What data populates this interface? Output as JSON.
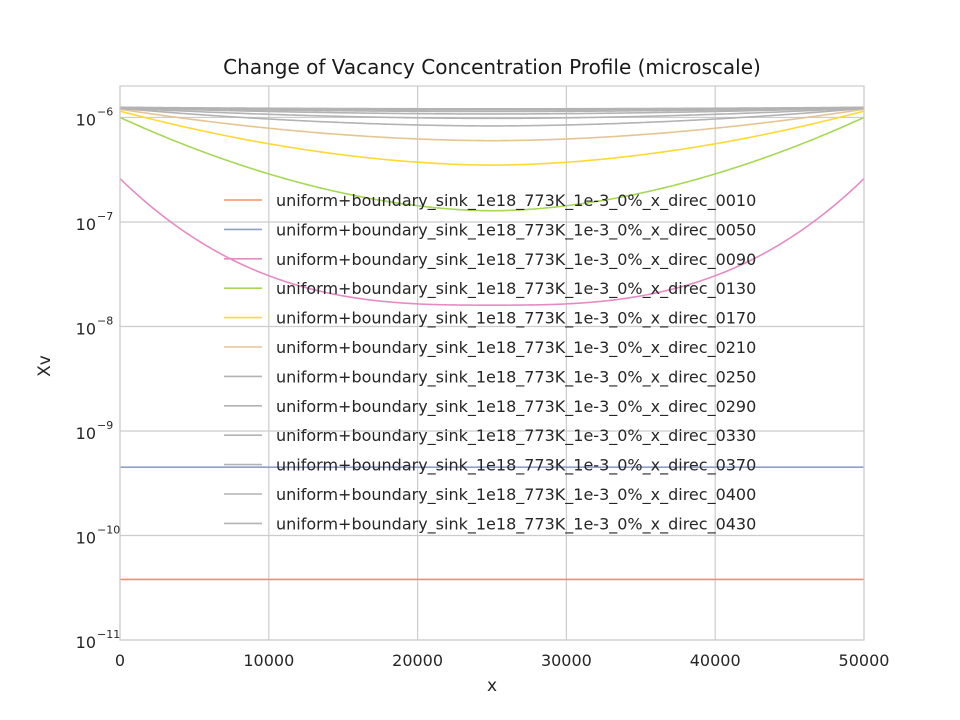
{
  "chart_data": {
    "type": "line",
    "title": "Change of Vacancy Concentration Profile (microscale)",
    "xlabel": "x",
    "ylabel": "Xv",
    "xlim": [
      0,
      50000
    ],
    "ylim": [
      1e-11,
      2e-06
    ],
    "yscale": "log",
    "grid": true,
    "legend_position": "center-right",
    "x_ticks": [
      {
        "value": 0,
        "label": "0"
      },
      {
        "value": 10000,
        "label": "10000"
      },
      {
        "value": 20000,
        "label": "20000"
      },
      {
        "value": 30000,
        "label": "30000"
      },
      {
        "value": 40000,
        "label": "40000"
      },
      {
        "value": 50000,
        "label": "50000"
      }
    ],
    "y_ticks": [
      {
        "value": 1e-11,
        "base": "10",
        "exp": "−11"
      },
      {
        "value": 1e-10,
        "base": "10",
        "exp": "−10"
      },
      {
        "value": 1e-09,
        "base": "10",
        "exp": "−9"
      },
      {
        "value": 1e-08,
        "base": "10",
        "exp": "−8"
      },
      {
        "value": 1e-07,
        "base": "10",
        "exp": "−7"
      },
      {
        "value": 1e-06,
        "base": "10",
        "exp": "−6"
      }
    ],
    "series": [
      {
        "name": "uniform+boundary_sink_1e18_773K_1e-3_0%_x_direc_0010",
        "color": "#fc8d62",
        "edge": 3.8e-11,
        "mid": 3.8e-11
      },
      {
        "name": "uniform+boundary_sink_1e18_773K_1e-3_0%_x_direc_0050",
        "color": "#8da0cb",
        "edge": 4.5e-10,
        "mid": 4.5e-10
      },
      {
        "name": "uniform+boundary_sink_1e18_773K_1e-3_0%_x_direc_0090",
        "color": "#e78ac3",
        "edge": 2.6e-07,
        "mid": 1.6e-08
      },
      {
        "name": "uniform+boundary_sink_1e18_773K_1e-3_0%_x_direc_0130",
        "color": "#a6d854",
        "edge": 1e-06,
        "mid": 1.28e-07
      },
      {
        "name": "uniform+boundary_sink_1e18_773K_1e-3_0%_x_direc_0170",
        "color": "#ffd92f",
        "edge": 1.15e-06,
        "mid": 3.5e-07
      },
      {
        "name": "uniform+boundary_sink_1e18_773K_1e-3_0%_x_direc_0210",
        "color": "#e5c494",
        "edge": 1.2e-06,
        "mid": 6e-07
      },
      {
        "name": "uniform+boundary_sink_1e18_773K_1e-3_0%_x_direc_0250",
        "color": "#b3b3b3",
        "edge": 1.22e-06,
        "mid": 8.3e-07
      },
      {
        "name": "uniform+boundary_sink_1e18_773K_1e-3_0%_x_direc_0290",
        "color": "#b3b3b3",
        "edge": 1.23e-06,
        "mid": 9.8e-07
      },
      {
        "name": "uniform+boundary_sink_1e18_773K_1e-3_0%_x_direc_0330",
        "color": "#b3b3b3",
        "edge": 1.24e-06,
        "mid": 1.08e-06
      },
      {
        "name": "uniform+boundary_sink_1e18_773K_1e-3_0%_x_direc_0370",
        "color": "#b3b3b3",
        "edge": 1.24e-06,
        "mid": 1.14e-06
      },
      {
        "name": "uniform+boundary_sink_1e18_773K_1e-3_0%_x_direc_0400",
        "color": "#b3b3b3",
        "edge": 1.25e-06,
        "mid": 1.18e-06
      },
      {
        "name": "uniform+boundary_sink_1e18_773K_1e-3_0%_x_direc_0430",
        "color": "#b3b3b3",
        "edge": 1.25e-06,
        "mid": 1.21e-06
      }
    ]
  }
}
